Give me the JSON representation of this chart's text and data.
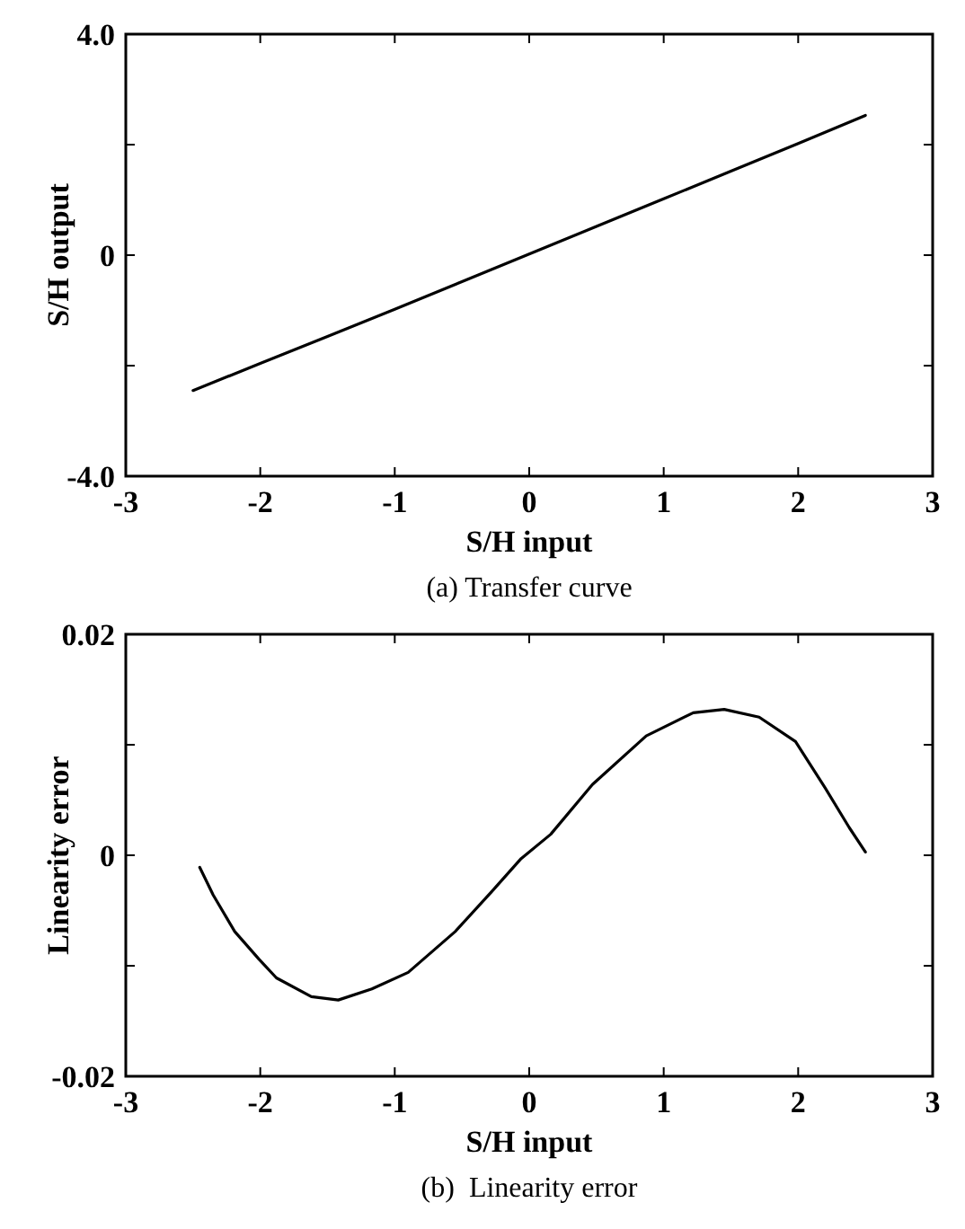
{
  "chart_data": [
    {
      "type": "line",
      "title": "(a) Transfer curve",
      "xlabel": "S/H input",
      "ylabel": "S/H output",
      "xlim": [
        -3,
        3
      ],
      "ylim": [
        -4,
        4
      ],
      "xticks": [
        -3,
        -2,
        -1,
        0,
        1,
        2,
        3
      ],
      "yticks": [
        {
          "value": -4,
          "label": "-4.0"
        },
        {
          "value": -2,
          "label": null
        },
        0,
        {
          "value": 2,
          "label": null
        },
        {
          "value": 4,
          "label": "4.0"
        }
      ],
      "grid": false,
      "marker": "none",
      "line_style": "solid",
      "series": [
        {
          "color": "#000000",
          "x": [
            -2.5,
            -2,
            -1.5,
            -1,
            -0.5,
            0,
            0.5,
            1,
            1.5,
            2,
            2.5
          ],
          "values": [
            -2.45,
            -1.96,
            -1.47,
            -0.98,
            -0.48,
            0.02,
            0.52,
            1.02,
            1.52,
            2.02,
            2.53
          ]
        }
      ]
    },
    {
      "type": "line",
      "title": "(b)  Linearity error",
      "xlabel": "S/H input",
      "ylabel": "Linearity error",
      "xlim": [
        -3,
        3
      ],
      "ylim": [
        -0.02,
        0.02
      ],
      "xticks": [
        -3,
        -2,
        -1,
        0,
        1,
        2,
        3
      ],
      "yticks": [
        {
          "value": -0.02,
          "label": "-0.02"
        },
        {
          "value": -0.01,
          "label": null
        },
        0,
        {
          "value": 0.01,
          "label": null
        },
        {
          "value": 0.02,
          "label": "0.02"
        }
      ],
      "grid": false,
      "marker": "none",
      "line_style": "solid",
      "series": [
        {
          "color": "#000000",
          "x": [
            -2.45,
            -2.35,
            -2.19,
            -2.01,
            -1.88,
            -1.62,
            -1.42,
            -1.17,
            -0.9,
            -0.55,
            -0.28,
            -0.06,
            0.16,
            0.47,
            0.87,
            1.22,
            1.45,
            1.71,
            1.98,
            2.2,
            2.38,
            2.5
          ],
          "values": [
            -0.0011,
            -0.0036,
            -0.0069,
            -0.0094,
            -0.0111,
            -0.0128,
            -0.0131,
            -0.0121,
            -0.0106,
            -0.0069,
            -0.0033,
            -0.0003,
            0.0019,
            0.0064,
            0.0108,
            0.0129,
            0.0132,
            0.0125,
            0.0103,
            0.0061,
            0.0025,
            0.0003
          ]
        }
      ]
    }
  ]
}
